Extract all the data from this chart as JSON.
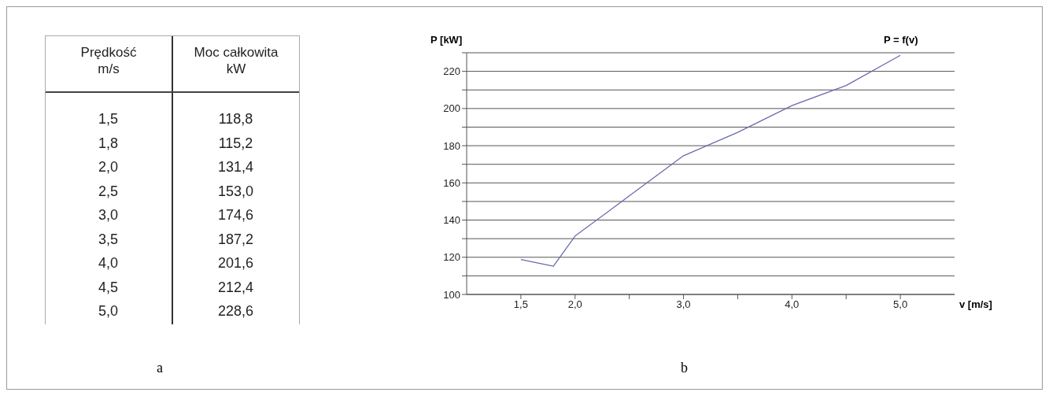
{
  "chart_data": {
    "type": "line",
    "ylabel": "P [kW]",
    "xlabel": "v [m/s]",
    "annotations": [
      "P = f(v)",
      "b",
      "Prędkość",
      "m/s",
      "Moc całkowita",
      "kW",
      "1,5",
      "118,8",
      "1,8",
      "115,2",
      "2,0",
      "131,4",
      "2,5",
      "153,0",
      "3,0",
      "174,6",
      "3,5",
      "187,2",
      "4,0",
      "201,6",
      "4,5",
      "212,4",
      "5,0",
      "228,6",
      "a"
    ],
    "x": [
      1.5,
      1.8,
      2.0,
      2.5,
      3.0,
      3.5,
      4.0,
      4.5,
      5.0
    ],
    "series": [
      {
        "color": "#6b6bb0",
        "values": [
          118.8,
          115.2,
          131.4,
          153.0,
          174.6,
          187.2,
          201.6,
          212.4,
          228.6
        ]
      }
    ],
    "xlim": [
      1.0,
      5.5
    ],
    "xticks": [
      {
        "value": 1.5,
        "label": "1,5"
      },
      {
        "value": 2.0,
        "label": "2,0"
      },
      {
        "value": 2.5,
        "label": null
      },
      {
        "value": 3.0,
        "label": "3,0"
      },
      {
        "value": 3.5,
        "label": null
      },
      {
        "value": 4.0,
        "label": "4,0"
      },
      {
        "value": 4.5,
        "label": null
      },
      {
        "value": 5.0,
        "label": "5,0"
      }
    ],
    "ylim": [
      100,
      230
    ],
    "yticks": [
      100,
      {
        "value": 110,
        "label": null
      },
      120,
      {
        "value": 130,
        "label": null
      },
      140,
      {
        "value": 150,
        "label": null
      },
      160,
      {
        "value": 170,
        "label": null
      },
      180,
      {
        "value": 190,
        "label": null
      },
      200,
      {
        "value": 210,
        "label": null
      },
      220,
      {
        "value": 230,
        "label": null
      }
    ],
    "grid": "y",
    "marker": "none",
    "line_style": "solid",
    "legend": false
  }
}
